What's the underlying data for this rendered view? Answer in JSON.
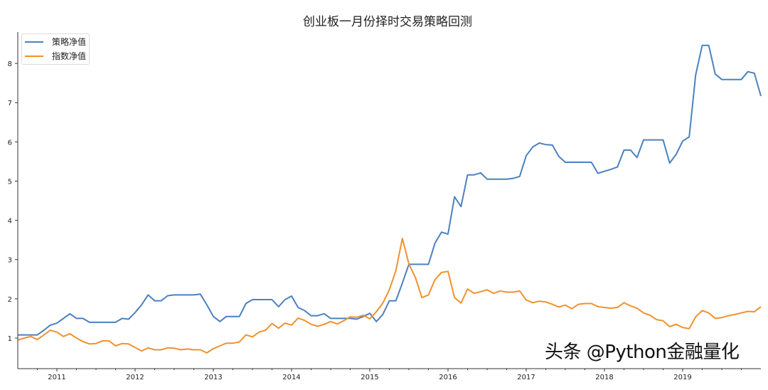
{
  "chart_data": {
    "type": "line",
    "title": "创业板一月份择时交易策略回测",
    "xlabel": "",
    "ylabel": "",
    "xlim": [
      "2010-07",
      "2020-01"
    ],
    "ylim": [
      0.22,
      8.8
    ],
    "x_ticks": [
      "2011",
      "2012",
      "2013",
      "2014",
      "2015",
      "2016",
      "2017",
      "2018",
      "2019"
    ],
    "y_ticks": [
      1,
      2,
      3,
      4,
      5,
      6,
      7,
      8
    ],
    "grid": false,
    "legend_position": "top-left",
    "x": [
      "2010-07",
      "2010-08",
      "2010-09",
      "2010-10",
      "2010-11",
      "2010-12",
      "2011-01",
      "2011-02",
      "2011-03",
      "2011-04",
      "2011-05",
      "2011-06",
      "2011-07",
      "2011-08",
      "2011-09",
      "2011-10",
      "2011-11",
      "2011-12",
      "2012-01",
      "2012-02",
      "2012-03",
      "2012-04",
      "2012-05",
      "2012-06",
      "2012-07",
      "2012-08",
      "2012-09",
      "2012-10",
      "2012-11",
      "2012-12",
      "2013-01",
      "2013-02",
      "2013-03",
      "2013-04",
      "2013-05",
      "2013-06",
      "2013-07",
      "2013-08",
      "2013-09",
      "2013-10",
      "2013-11",
      "2013-12",
      "2014-01",
      "2014-02",
      "2014-03",
      "2014-04",
      "2014-05",
      "2014-06",
      "2014-07",
      "2014-08",
      "2014-09",
      "2014-10",
      "2014-11",
      "2014-12",
      "2015-01",
      "2015-02",
      "2015-03",
      "2015-04",
      "2015-05",
      "2015-06",
      "2015-07",
      "2015-08",
      "2015-09",
      "2015-10",
      "2015-11",
      "2015-12",
      "2016-01",
      "2016-02",
      "2016-03",
      "2016-04",
      "2016-05",
      "2016-06",
      "2016-07",
      "2016-08",
      "2016-09",
      "2016-10",
      "2016-11",
      "2016-12",
      "2017-01",
      "2017-02",
      "2017-03",
      "2017-04",
      "2017-05",
      "2017-06",
      "2017-07",
      "2017-08",
      "2017-09",
      "2017-10",
      "2017-11",
      "2017-12",
      "2018-01",
      "2018-02",
      "2018-03",
      "2018-04",
      "2018-05",
      "2018-06",
      "2018-07",
      "2018-08",
      "2018-09",
      "2018-10",
      "2018-11",
      "2018-12",
      "2019-01",
      "2019-02",
      "2019-03",
      "2019-04",
      "2019-05",
      "2019-06",
      "2019-07",
      "2019-08",
      "2019-09",
      "2019-10",
      "2019-11",
      "2019-12",
      "2020-01"
    ],
    "series": [
      {
        "name": "策略净值",
        "color": "#4c81bf",
        "values": [
          1.08,
          1.08,
          1.08,
          1.08,
          1.2,
          1.33,
          1.38,
          1.5,
          1.62,
          1.5,
          1.5,
          1.4,
          1.4,
          1.4,
          1.4,
          1.4,
          1.5,
          1.48,
          1.65,
          1.85,
          2.1,
          1.95,
          1.95,
          2.08,
          2.1,
          2.1,
          2.1,
          2.1,
          2.12,
          1.85,
          1.55,
          1.42,
          1.55,
          1.55,
          1.55,
          1.88,
          1.98,
          1.98,
          1.98,
          1.98,
          1.8,
          1.98,
          2.07,
          1.78,
          1.7,
          1.57,
          1.57,
          1.62,
          1.5,
          1.5,
          1.5,
          1.5,
          1.48,
          1.55,
          1.63,
          1.42,
          1.6,
          1.95,
          1.95,
          2.4,
          2.88,
          2.88,
          2.88,
          2.88,
          3.42,
          3.7,
          3.65,
          4.6,
          4.35,
          5.16,
          5.16,
          5.21,
          5.05,
          5.05,
          5.05,
          5.05,
          5.07,
          5.12,
          5.65,
          5.87,
          5.97,
          5.93,
          5.92,
          5.63,
          5.48,
          5.48,
          5.48,
          5.48,
          5.48,
          5.2,
          5.25,
          5.3,
          5.36,
          5.79,
          5.79,
          5.6,
          6.05,
          6.05,
          6.05,
          6.05,
          5.46,
          5.68,
          6.02,
          6.13,
          7.71,
          8.46,
          8.46,
          7.73,
          7.59,
          7.59,
          7.59,
          7.59,
          7.79,
          7.75,
          7.17
        ]
      },
      {
        "name": "指数净值",
        "color": "#f0922e",
        "values": [
          0.95,
          1.0,
          1.04,
          0.96,
          1.08,
          1.2,
          1.15,
          1.04,
          1.11,
          1.0,
          0.91,
          0.85,
          0.86,
          0.93,
          0.93,
          0.8,
          0.86,
          0.85,
          0.76,
          0.67,
          0.75,
          0.7,
          0.7,
          0.75,
          0.74,
          0.7,
          0.72,
          0.7,
          0.7,
          0.62,
          0.73,
          0.8,
          0.87,
          0.87,
          0.9,
          1.08,
          1.03,
          1.15,
          1.2,
          1.37,
          1.25,
          1.38,
          1.33,
          1.51,
          1.45,
          1.35,
          1.3,
          1.35,
          1.42,
          1.36,
          1.44,
          1.54,
          1.53,
          1.58,
          1.49,
          1.67,
          1.89,
          2.23,
          2.72,
          3.54,
          2.89,
          2.54,
          2.03,
          2.1,
          2.49,
          2.67,
          2.7,
          2.03,
          1.89,
          2.25,
          2.14,
          2.18,
          2.23,
          2.14,
          2.2,
          2.17,
          2.17,
          2.2,
          1.97,
          1.9,
          1.94,
          1.92,
          1.86,
          1.79,
          1.84,
          1.75,
          1.86,
          1.88,
          1.88,
          1.8,
          1.78,
          1.76,
          1.78,
          1.9,
          1.82,
          1.76,
          1.64,
          1.58,
          1.47,
          1.44,
          1.29,
          1.35,
          1.27,
          1.24,
          1.54,
          1.7,
          1.64,
          1.5,
          1.52,
          1.57,
          1.6,
          1.64,
          1.68,
          1.67,
          1.8
        ]
      }
    ]
  },
  "watermark": "头条 @Python金融量化"
}
